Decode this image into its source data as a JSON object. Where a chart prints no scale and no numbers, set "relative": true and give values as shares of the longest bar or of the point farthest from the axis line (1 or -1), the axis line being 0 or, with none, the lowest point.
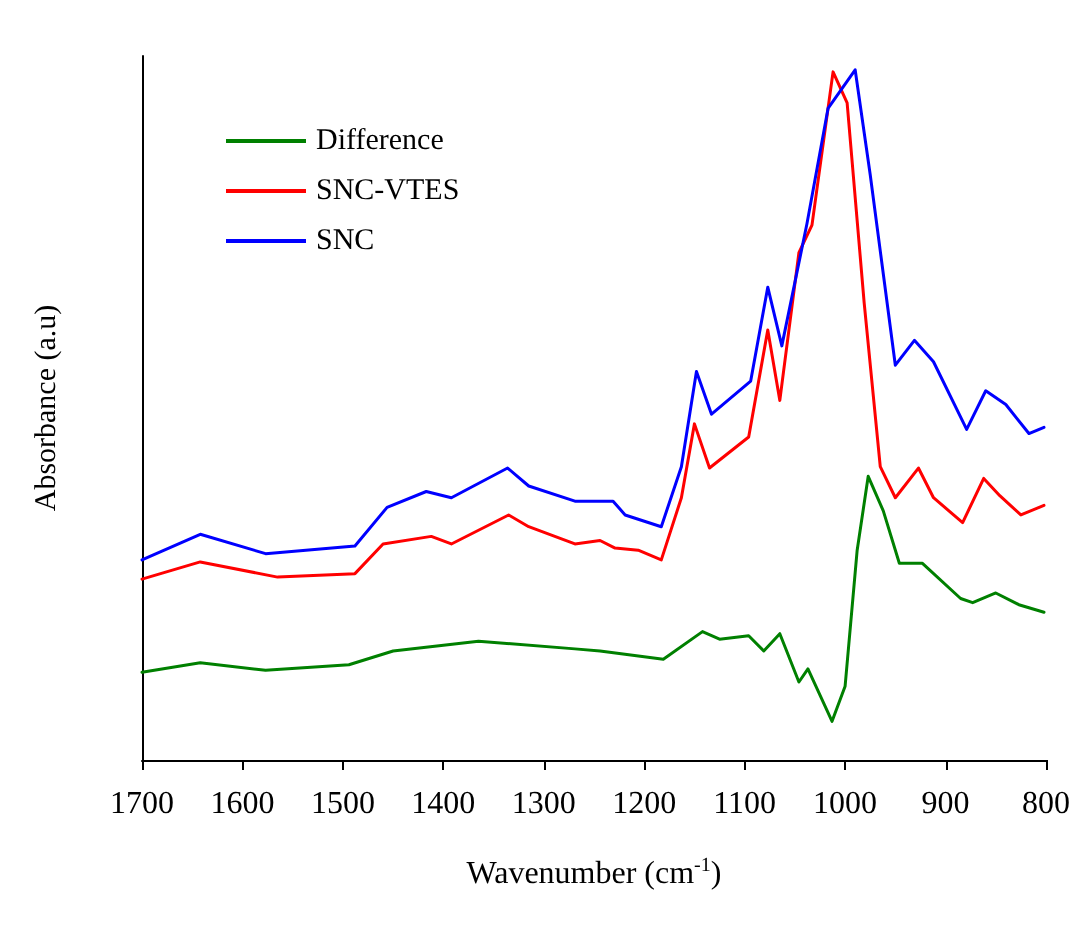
{
  "chart_data": {
    "type": "line",
    "relative": true,
    "xlabel": "Wavenumber (cm$^{-1}$)",
    "ylabel": "Absorbance (a.u)",
    "xlim": [
      1700,
      800
    ],
    "xticks": [
      1700,
      1600,
      1500,
      1400,
      1300,
      1200,
      1100,
      1000,
      900,
      800
    ],
    "tick_labels": "x",
    "legend": "top left",
    "grid": false,
    "marker": "none",
    "line_style": "solid",
    "series": [
      {
        "name": "Difference",
        "color": "#008000",
        "x": [
          1700,
          1642,
          1577,
          1494,
          1450,
          1365,
          1269,
          1244,
          1181,
          1142,
          1125,
          1096,
          1081,
          1065,
          1046,
          1037,
          1013,
          1000,
          988,
          977,
          962,
          946,
          923,
          885,
          873,
          850,
          827,
          802
        ],
        "values": [
          0.127,
          0.141,
          0.13,
          0.138,
          0.158,
          0.172,
          0.161,
          0.158,
          0.146,
          0.186,
          0.175,
          0.18,
          0.158,
          0.183,
          0.113,
          0.132,
          0.056,
          0.107,
          0.304,
          0.411,
          0.361,
          0.285,
          0.285,
          0.234,
          0.228,
          0.242,
          0.225,
          0.214
        ]
      },
      {
        "name": "SNC-VTES",
        "color": "#ff0000",
        "x": [
          1700,
          1642,
          1565,
          1488,
          1460,
          1412,
          1392,
          1335,
          1315,
          1269,
          1244,
          1229,
          1206,
          1183,
          1163,
          1150,
          1135,
          1096,
          1077,
          1065,
          1046,
          1033,
          1012,
          998,
          981,
          965,
          950,
          927,
          912,
          883,
          862,
          846,
          825,
          802
        ],
        "values": [
          0.262,
          0.287,
          0.265,
          0.27,
          0.313,
          0.324,
          0.313,
          0.355,
          0.338,
          0.313,
          0.318,
          0.307,
          0.304,
          0.29,
          0.38,
          0.487,
          0.423,
          0.468,
          0.623,
          0.521,
          0.735,
          0.775,
          0.997,
          0.952,
          0.662,
          0.425,
          0.38,
          0.423,
          0.38,
          0.344,
          0.408,
          0.383,
          0.355,
          0.369
        ]
      },
      {
        "name": "SNC",
        "color": "#0000ff",
        "x": [
          1700,
          1642,
          1577,
          1488,
          1456,
          1417,
          1392,
          1336,
          1315,
          1269,
          1231,
          1219,
          1183,
          1163,
          1148,
          1133,
          1094,
          1077,
          1063,
          1038,
          1017,
          990,
          975,
          950,
          931,
          912,
          879,
          860,
          840,
          817,
          802
        ],
        "values": [
          0.29,
          0.327,
          0.299,
          0.31,
          0.366,
          0.389,
          0.38,
          0.423,
          0.397,
          0.375,
          0.375,
          0.355,
          0.338,
          0.425,
          0.563,
          0.501,
          0.549,
          0.685,
          0.6,
          0.777,
          0.944,
          1,
          0.848,
          0.572,
          0.608,
          0.577,
          0.479,
          0.535,
          0.515,
          0.473,
          0.482
        ]
      }
    ]
  }
}
